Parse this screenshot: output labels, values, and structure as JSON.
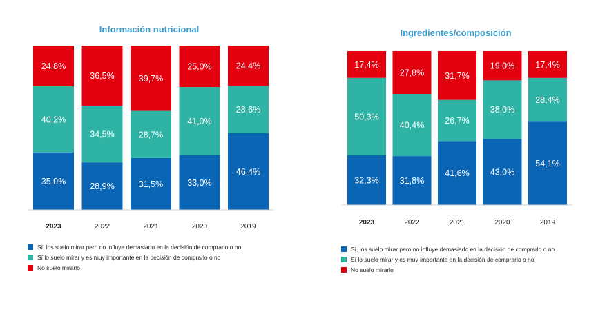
{
  "colors": {
    "blue": "#0a65b5",
    "teal": "#2fb3a5",
    "red": "#e3000f",
    "axis": "#d0d0d0"
  },
  "legend": [
    {
      "label": "Sí, los suelo mirar pero no influye demasiado en la decisión de comprarlo o no",
      "color": "#0a65b5"
    },
    {
      "label": "Sí lo suelo mirar y es muy importante en la decisión de comprarlo o no",
      "color": "#2fb3a5"
    },
    {
      "label": "No suelo mirarlo",
      "color": "#e3000f"
    }
  ],
  "chart_data": [
    {
      "type": "bar",
      "stacked": true,
      "title": "Información nutricional",
      "categories": [
        "2023",
        "2022",
        "2021",
        "2020",
        "2019"
      ],
      "series": [
        {
          "name": "Sí, los suelo mirar pero no influye demasiado en la decisión de comprarlo o no",
          "values": [
            35.0,
            28.9,
            31.5,
            33.0,
            46.4
          ],
          "labels": [
            "35,0%",
            "28,9%",
            "31,5%",
            "33,0%",
            "46,4%"
          ]
        },
        {
          "name": "Sí lo suelo mirar y es muy importante en la decisión de comprarlo o no",
          "values": [
            40.2,
            34.5,
            28.7,
            41.0,
            28.6
          ],
          "labels": [
            "40,2%",
            "34,5%",
            "28,7%",
            "41,0%",
            "28,6%"
          ]
        },
        {
          "name": "No suelo mirarlo",
          "values": [
            24.8,
            36.5,
            39.7,
            25.0,
            24.4
          ],
          "labels": [
            "24,8%",
            "36,5%",
            "39,7%",
            "25,0%",
            "24,4%"
          ]
        }
      ],
      "ylim": [
        0,
        100
      ]
    },
    {
      "type": "bar",
      "stacked": true,
      "title": "Ingredientes/composición",
      "categories": [
        "2023",
        "2022",
        "2021",
        "2020",
        "2019"
      ],
      "series": [
        {
          "name": "Sí, los suelo mirar pero no influye demasiado en la decisión de comprarlo o no",
          "values": [
            32.3,
            31.8,
            41.6,
            43.0,
            54.1
          ],
          "labels": [
            "32,3%",
            "31,8%",
            "41,6%",
            "43,0%",
            "54,1%"
          ]
        },
        {
          "name": "Sí lo suelo mirar y es muy importante en la decisión de comprarlo o no",
          "values": [
            50.3,
            40.4,
            26.7,
            38.0,
            28.4
          ],
          "labels": [
            "50,3%",
            "40,4%",
            "26,7%",
            "38,0%",
            "28,4%"
          ]
        },
        {
          "name": "No suelo mirarlo",
          "values": [
            17.4,
            27.8,
            31.7,
            19.0,
            17.4
          ],
          "labels": [
            "17,4%",
            "27,8%",
            "31,7%",
            "19,0%",
            "17,4%"
          ]
        }
      ],
      "ylim": [
        0,
        100
      ]
    }
  ]
}
